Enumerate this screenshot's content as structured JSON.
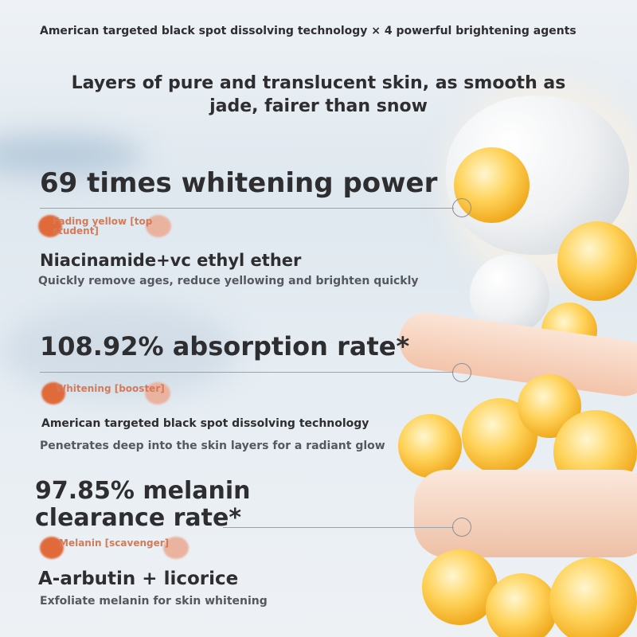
{
  "header": {
    "subtitle": "American targeted black spot dissolving technology × 4 powerful brightening agents",
    "headline": "Layers of pure and translucent skin, as smooth as jade, fairer than snow"
  },
  "sections": [
    {
      "stat": "69 times whitening power",
      "tag": "Fading yellow [top student]",
      "ingredient": "Niacinamide+vc ethyl ether",
      "desc": "Quickly remove ages, reduce yellowing and brighten quickly"
    },
    {
      "stat": "108.92% absorption rate*",
      "tag": "Whitening [booster]",
      "ingredient": "American targeted black spot dissolving technology",
      "desc": "Penetrates deep into the skin layers for a radiant glow"
    },
    {
      "stat": "97.85% melanin clearance rate*",
      "tag": "Melanin [scavenger]",
      "ingredient": "A-arbutin + licorice",
      "desc": "Exfoliate melanin for skin whitening"
    }
  ],
  "colors": {
    "text": "#2e2e30",
    "tag": "#d57a58",
    "accent": "#e06a3a"
  }
}
